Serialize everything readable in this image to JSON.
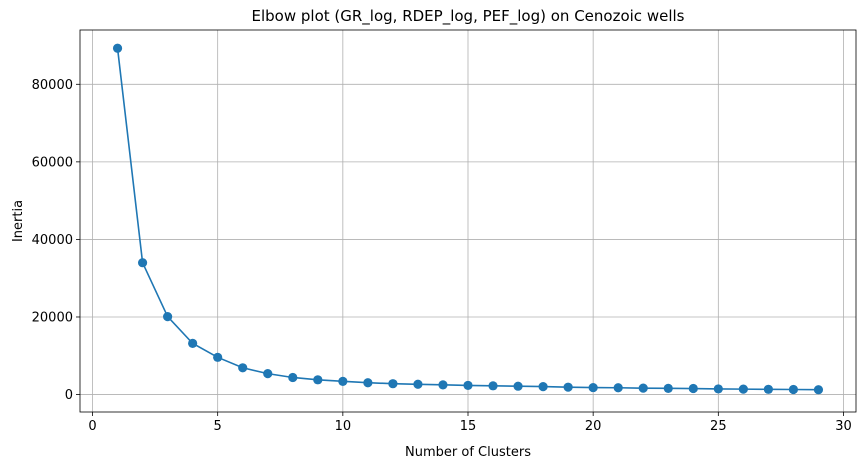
{
  "chart_data": {
    "type": "line",
    "title": "Elbow plot (GR_log, RDEP_log, PEF_log) on Cenozoic wells",
    "xlabel": "Number of Clusters",
    "ylabel": "Inertia",
    "xlim": [
      -0.5,
      30.5
    ],
    "ylim": [
      -4500,
      94000
    ],
    "x_ticks": [
      0,
      5,
      10,
      15,
      20,
      25,
      30
    ],
    "y_ticks": [
      0,
      20000,
      40000,
      60000,
      80000
    ],
    "grid": true,
    "series": [
      {
        "color": "#1f77b4",
        "marker": "circle",
        "x": [
          1,
          2,
          3,
          4,
          5,
          6,
          7,
          8,
          9,
          10,
          11,
          12,
          13,
          14,
          15,
          16,
          17,
          18,
          19,
          20,
          21,
          22,
          23,
          24,
          25,
          26,
          27,
          28,
          29
        ],
        "y": [
          89300,
          34000,
          20100,
          13200,
          9600,
          6900,
          5400,
          4400,
          3800,
          3400,
          3050,
          2800,
          2650,
          2500,
          2350,
          2250,
          2150,
          2050,
          1900,
          1800,
          1750,
          1650,
          1600,
          1550,
          1450,
          1400,
          1350,
          1300,
          1250
        ]
      }
    ]
  }
}
